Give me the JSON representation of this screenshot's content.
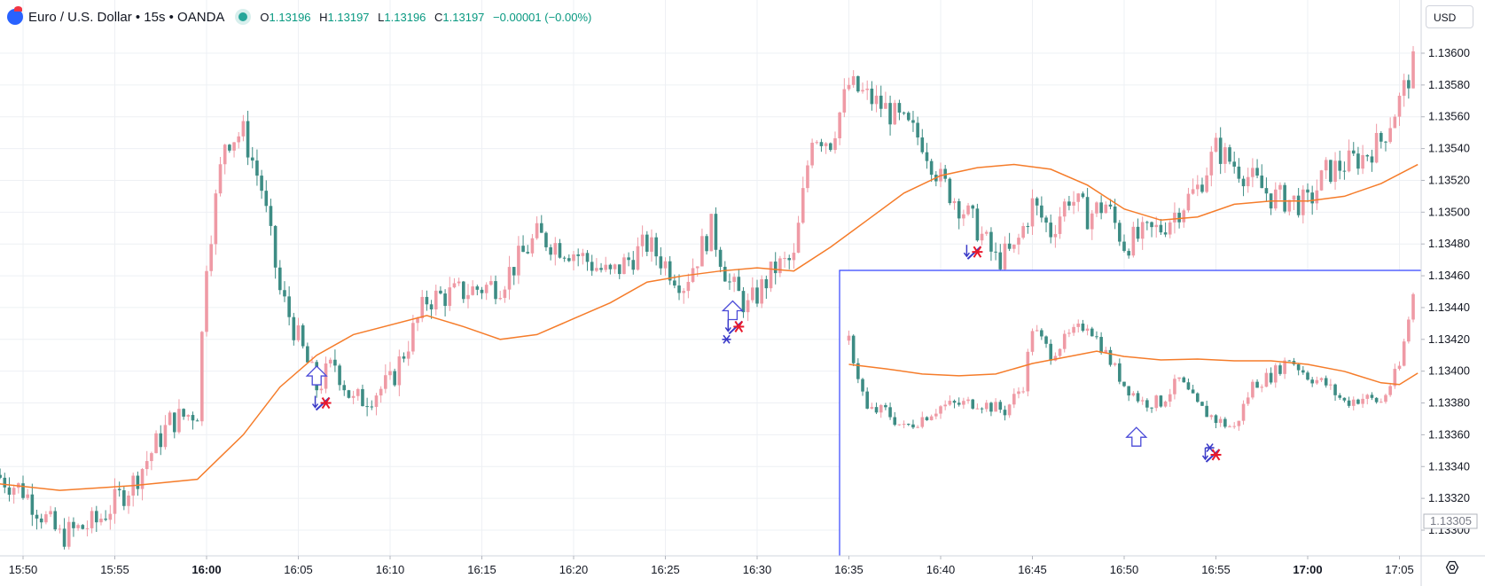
{
  "header": {
    "symbol_title": "Euro / U.S. Dollar • 15s • OANDA",
    "o_label": "O",
    "o_value": "1.13196",
    "h_label": "H",
    "h_value": "1.13197",
    "l_label": "L",
    "l_value": "1.13196",
    "c_label": "C",
    "c_value": "1.13197",
    "change": "−0.00001 (−0.00%)"
  },
  "price_axis": {
    "currency_button": "USD",
    "last_price_label": "1.13305"
  },
  "colors": {
    "up": "#ef9aa5",
    "down": "#3d8c84",
    "ma": "#f57c2a",
    "inset_border": "#3344ff",
    "marker_blue": "#3a3ac8",
    "marker_red": "#e8192c"
  },
  "chart_data": [
    {
      "type": "candlestick",
      "name": "main",
      "ylim": [
        1.13284,
        1.13614
      ],
      "y_ticks": [
        "1.13600",
        "1.13580",
        "1.13560",
        "1.13540",
        "1.13520",
        "1.13500",
        "1.13480",
        "1.13460",
        "1.13440",
        "1.13420",
        "1.13400",
        "1.13380",
        "1.13360",
        "1.13340",
        "1.13320",
        "1.13300"
      ],
      "x_ticks": [
        "15:50",
        "15:55",
        "16:00",
        "16:05",
        "16:10",
        "16:15",
        "16:20",
        "16:25",
        "16:30",
        "16:35",
        "16:40",
        "16:45",
        "16:50",
        "16:55",
        "17:00",
        "17:05"
      ],
      "x_ticks_bold": [
        "16:00",
        "17:00"
      ],
      "close_anchors": [
        {
          "time": "15:48:00",
          "close": 1.13338
        },
        {
          "time": "15:50:00",
          "close": 1.13325
        },
        {
          "time": "15:52:00",
          "close": 1.13296
        },
        {
          "time": "15:54:00",
          "close": 1.13305
        },
        {
          "time": "15:56:00",
          "close": 1.1333
        },
        {
          "time": "15:58:00",
          "close": 1.13368
        },
        {
          "time": "15:59:30",
          "close": 1.13375
        },
        {
          "time": "16:00:00",
          "close": 1.1347
        },
        {
          "time": "16:01:00",
          "close": 1.13545
        },
        {
          "time": "16:02:00",
          "close": 1.1355
        },
        {
          "time": "16:03:00",
          "close": 1.13515
        },
        {
          "time": "16:04:00",
          "close": 1.1345
        },
        {
          "time": "16:05:00",
          "close": 1.1342
        },
        {
          "time": "16:06:00",
          "close": 1.1339
        },
        {
          "time": "16:07:00",
          "close": 1.13405
        },
        {
          "time": "16:08:00",
          "close": 1.1338
        },
        {
          "time": "16:10:00",
          "close": 1.13392
        },
        {
          "time": "16:12:00",
          "close": 1.13445
        },
        {
          "time": "16:14:00",
          "close": 1.1345
        },
        {
          "time": "16:16:00",
          "close": 1.13455
        },
        {
          "time": "16:18:00",
          "close": 1.13485
        },
        {
          "time": "16:20:00",
          "close": 1.13475
        },
        {
          "time": "16:22:00",
          "close": 1.1346
        },
        {
          "time": "16:24:00",
          "close": 1.1348
        },
        {
          "time": "16:26:00",
          "close": 1.13455
        },
        {
          "time": "16:27:30",
          "close": 1.1349
        },
        {
          "time": "16:28:30",
          "close": 1.13455
        },
        {
          "time": "16:29:30",
          "close": 1.1344
        },
        {
          "time": "16:31:00",
          "close": 1.13465
        },
        {
          "time": "16:32:00",
          "close": 1.1347
        },
        {
          "time": "16:33:00",
          "close": 1.1355
        },
        {
          "time": "16:34:00",
          "close": 1.13545
        },
        {
          "time": "16:35:00",
          "close": 1.1358
        },
        {
          "time": "16:37:00",
          "close": 1.13565
        },
        {
          "time": "16:39:00",
          "close": 1.13545
        },
        {
          "time": "16:40:00",
          "close": 1.1352
        },
        {
          "time": "16:42:00",
          "close": 1.1349
        },
        {
          "time": "16:43:00",
          "close": 1.1347
        },
        {
          "time": "16:44:00",
          "close": 1.13475
        },
        {
          "time": "16:45:00",
          "close": 1.13505
        },
        {
          "time": "16:46:00",
          "close": 1.13488
        },
        {
          "time": "16:47:00",
          "close": 1.1351
        },
        {
          "time": "16:48:00",
          "close": 1.13498
        },
        {
          "time": "16:49:00",
          "close": 1.13505
        },
        {
          "time": "16:50:00",
          "close": 1.1348
        },
        {
          "time": "16:52:00",
          "close": 1.1349
        },
        {
          "time": "16:54:00",
          "close": 1.13515
        },
        {
          "time": "16:55:00",
          "close": 1.1354
        },
        {
          "time": "16:57:00",
          "close": 1.1352
        },
        {
          "time": "16:58:00",
          "close": 1.1351
        },
        {
          "time": "17:00:00",
          "close": 1.13505
        },
        {
          "time": "17:01:00",
          "close": 1.13525
        },
        {
          "time": "17:02:00",
          "close": 1.1353
        },
        {
          "time": "17:03:00",
          "close": 1.13535
        },
        {
          "time": "17:04:00",
          "close": 1.13545
        },
        {
          "time": "17:05:00",
          "close": 1.1357
        },
        {
          "time": "17:06:00",
          "close": 1.136
        }
      ],
      "moving_average": [
        {
          "time": "15:48:00",
          "value": 1.1333
        },
        {
          "time": "15:52:00",
          "value": 1.13325
        },
        {
          "time": "15:56:00",
          "value": 1.13328
        },
        {
          "time": "15:59:30",
          "value": 1.13332
        },
        {
          "time": "16:02:00",
          "value": 1.1336
        },
        {
          "time": "16:04:00",
          "value": 1.1339
        },
        {
          "time": "16:06:00",
          "value": 1.1341
        },
        {
          "time": "16:08:00",
          "value": 1.13423
        },
        {
          "time": "16:12:00",
          "value": 1.13435
        },
        {
          "time": "16:14:00",
          "value": 1.13428
        },
        {
          "time": "16:16:00",
          "value": 1.1342
        },
        {
          "time": "16:18:00",
          "value": 1.13423
        },
        {
          "time": "16:20:00",
          "value": 1.13433
        },
        {
          "time": "16:22:00",
          "value": 1.13443
        },
        {
          "time": "16:24:00",
          "value": 1.13456
        },
        {
          "time": "16:26:00",
          "value": 1.1346
        },
        {
          "time": "16:28:00",
          "value": 1.13463
        },
        {
          "time": "16:30:00",
          "value": 1.13465
        },
        {
          "time": "16:32:00",
          "value": 1.13463
        },
        {
          "time": "16:34:00",
          "value": 1.13478
        },
        {
          "time": "16:36:00",
          "value": 1.13495
        },
        {
          "time": "16:38:00",
          "value": 1.13512
        },
        {
          "time": "16:40:00",
          "value": 1.13523
        },
        {
          "time": "16:42:00",
          "value": 1.13528
        },
        {
          "time": "16:44:00",
          "value": 1.1353
        },
        {
          "time": "16:46:00",
          "value": 1.13527
        },
        {
          "time": "16:48:00",
          "value": 1.13517
        },
        {
          "time": "16:50:00",
          "value": 1.13502
        },
        {
          "time": "16:52:00",
          "value": 1.13495
        },
        {
          "time": "16:54:00",
          "value": 1.13497
        },
        {
          "time": "16:56:00",
          "value": 1.13505
        },
        {
          "time": "16:58:00",
          "value": 1.13507
        },
        {
          "time": "17:00:00",
          "value": 1.13507
        },
        {
          "time": "17:02:00",
          "value": 1.1351
        },
        {
          "time": "17:04:00",
          "value": 1.13518
        },
        {
          "time": "17:06:00",
          "value": 1.1353
        }
      ],
      "markers": [
        {
          "kind": "up-arrow",
          "time": "16:06:00",
          "price": 1.13397
        },
        {
          "kind": "down-cross",
          "time": "16:06:30",
          "price": 1.1338
        },
        {
          "kind": "up-arrow",
          "time": "16:28:40",
          "price": 1.13438
        },
        {
          "kind": "down-cross",
          "time": "16:29:00",
          "price": 1.13428
        },
        {
          "kind": "asterisk",
          "time": "16:28:20",
          "price": 1.1342
        },
        {
          "kind": "down-cross",
          "time": "16:42:00",
          "price": 1.13475
        }
      ]
    },
    {
      "type": "candlestick",
      "name": "inset",
      "ylim": [
        1.1329,
        1.13606
      ],
      "close_anchors": [
        {
          "time": "16:35:00",
          "close": 1.1352
        },
        {
          "time": "16:36:00",
          "close": 1.1344
        },
        {
          "time": "16:37:00",
          "close": 1.1344
        },
        {
          "time": "16:38:00",
          "close": 1.1342
        },
        {
          "time": "16:40:00",
          "close": 1.13445
        },
        {
          "time": "16:42:00",
          "close": 1.1345
        },
        {
          "time": "16:43:30",
          "close": 1.1344
        },
        {
          "time": "16:44:30",
          "close": 1.1347
        },
        {
          "time": "16:45:00",
          "close": 1.13535
        },
        {
          "time": "16:46:00",
          "close": 1.13505
        },
        {
          "time": "16:47:00",
          "close": 1.13525
        },
        {
          "time": "16:48:00",
          "close": 1.1354
        },
        {
          "time": "16:49:00",
          "close": 1.13505
        },
        {
          "time": "16:50:00",
          "close": 1.1347
        },
        {
          "time": "16:51:00",
          "close": 1.1345
        },
        {
          "time": "16:52:00",
          "close": 1.1345
        },
        {
          "time": "16:53:00",
          "close": 1.13475
        },
        {
          "time": "16:54:00",
          "close": 1.13445
        },
        {
          "time": "16:55:00",
          "close": 1.1343
        },
        {
          "time": "16:56:00",
          "close": 1.1342
        },
        {
          "time": "16:57:00",
          "close": 1.1347
        },
        {
          "time": "16:58:00",
          "close": 1.1348
        },
        {
          "time": "16:59:00",
          "close": 1.135
        },
        {
          "time": "17:00:00",
          "close": 1.1348
        },
        {
          "time": "17:01:00",
          "close": 1.1347
        },
        {
          "time": "17:02:00",
          "close": 1.1345
        },
        {
          "time": "17:03:00",
          "close": 1.13455
        },
        {
          "time": "17:04:00",
          "close": 1.1345
        },
        {
          "time": "17:05:00",
          "close": 1.1349
        },
        {
          "time": "17:06:00",
          "close": 1.136
        }
      ],
      "moving_average": [
        {
          "time": "16:35:00",
          "value": 1.13493
        },
        {
          "time": "16:37:00",
          "value": 1.13488
        },
        {
          "time": "16:39:00",
          "value": 1.13482
        },
        {
          "time": "16:41:00",
          "value": 1.1348
        },
        {
          "time": "16:43:00",
          "value": 1.13482
        },
        {
          "time": "16:45:00",
          "value": 1.13494
        },
        {
          "time": "16:47:00",
          "value": 1.13502
        },
        {
          "time": "16:48:30",
          "value": 1.13508
        },
        {
          "time": "16:50:00",
          "value": 1.13502
        },
        {
          "time": "16:52:00",
          "value": 1.13498
        },
        {
          "time": "16:54:00",
          "value": 1.13499
        },
        {
          "time": "16:56:00",
          "value": 1.13497
        },
        {
          "time": "16:58:00",
          "value": 1.13497
        },
        {
          "time": "17:00:00",
          "value": 1.13493
        },
        {
          "time": "17:02:00",
          "value": 1.13485
        },
        {
          "time": "17:04:00",
          "value": 1.13472
        },
        {
          "time": "17:05:00",
          "value": 1.1347
        },
        {
          "time": "17:06:00",
          "value": 1.13483
        }
      ],
      "markers": [
        {
          "kind": "up-arrow",
          "time": "16:50:40",
          "price": 1.1341
        },
        {
          "kind": "asterisk",
          "time": "16:54:40",
          "price": 1.13398
        },
        {
          "kind": "down-cross",
          "time": "16:55:00",
          "price": 1.1339
        }
      ]
    }
  ]
}
